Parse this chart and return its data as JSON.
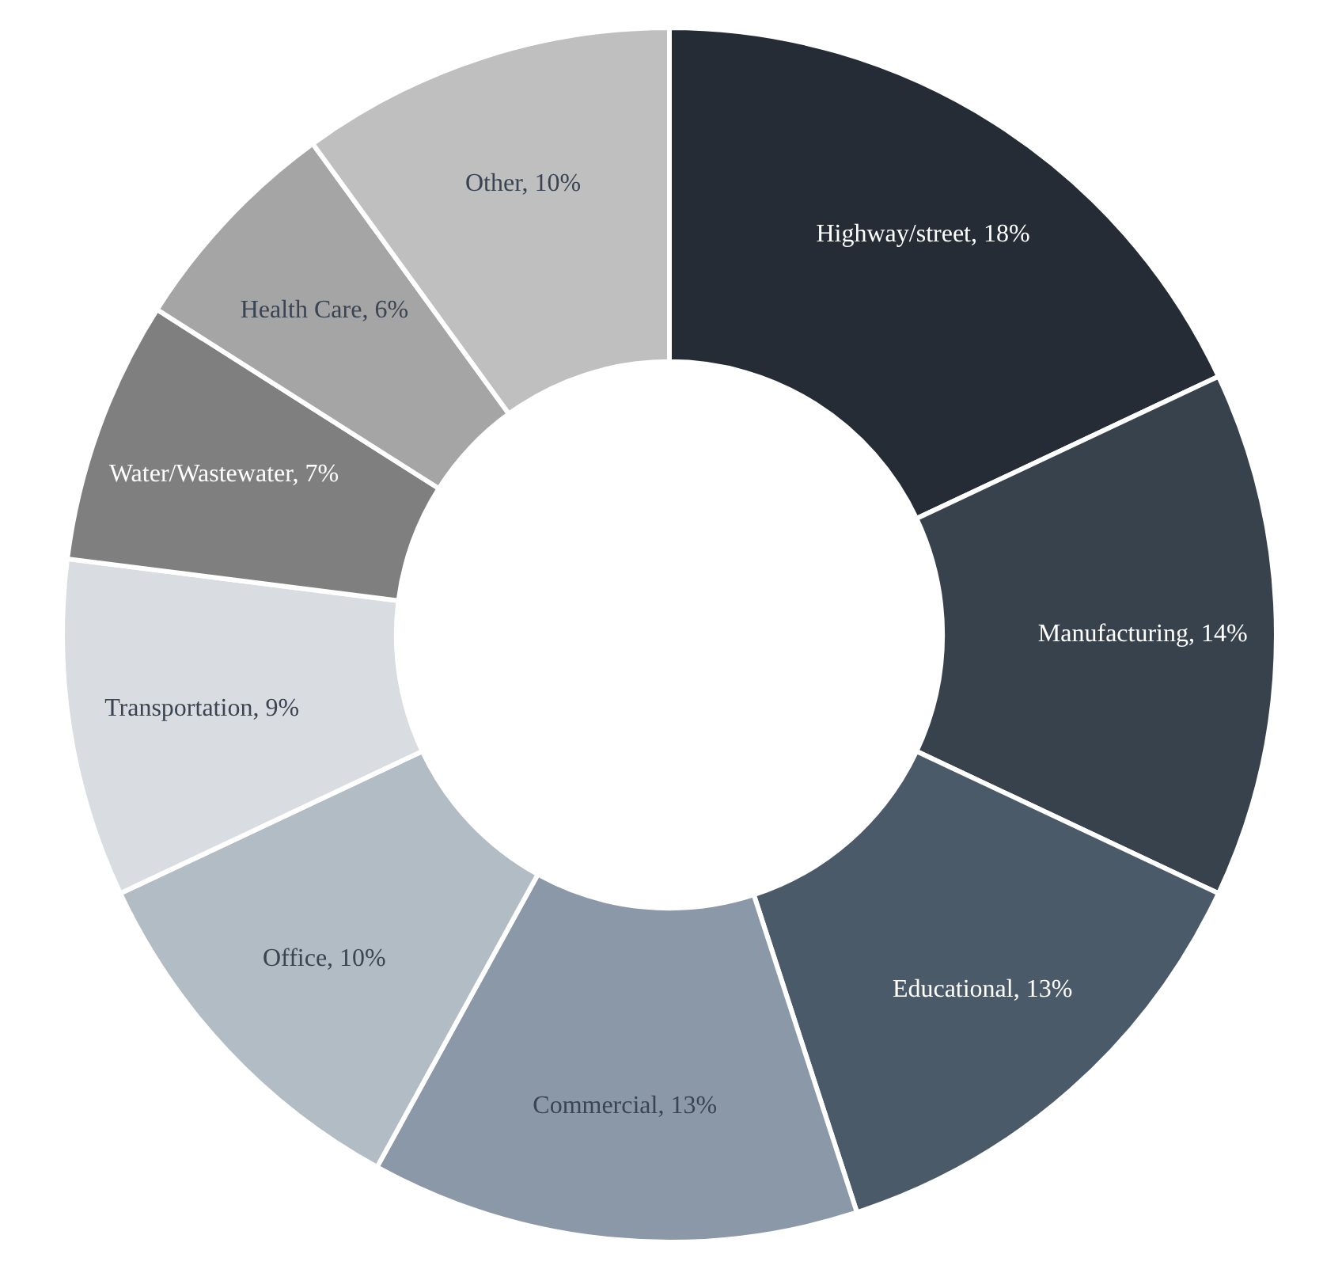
{
  "chart_data": {
    "type": "donut",
    "categories": [
      "Highway/street",
      "Manufacturing",
      "Educational",
      "Commercial",
      "Office",
      "Transportation",
      "Water/Wastewater",
      "Health Care",
      "Other"
    ],
    "values": [
      18,
      14,
      13,
      13,
      10,
      9,
      7,
      6,
      10
    ],
    "value_labels": [
      "18%",
      "14%",
      "13%",
      "13%",
      "10%",
      "9%",
      "7%",
      "6%",
      "10%"
    ],
    "colors": [
      "#262c35",
      "#38424d",
      "#4b5a69",
      "#8a98a8",
      "#b2bcc4",
      "#d9dde1",
      "#7f7f7f",
      "#a5a5a5",
      "#bfbfbf"
    ],
    "legend": false
  }
}
